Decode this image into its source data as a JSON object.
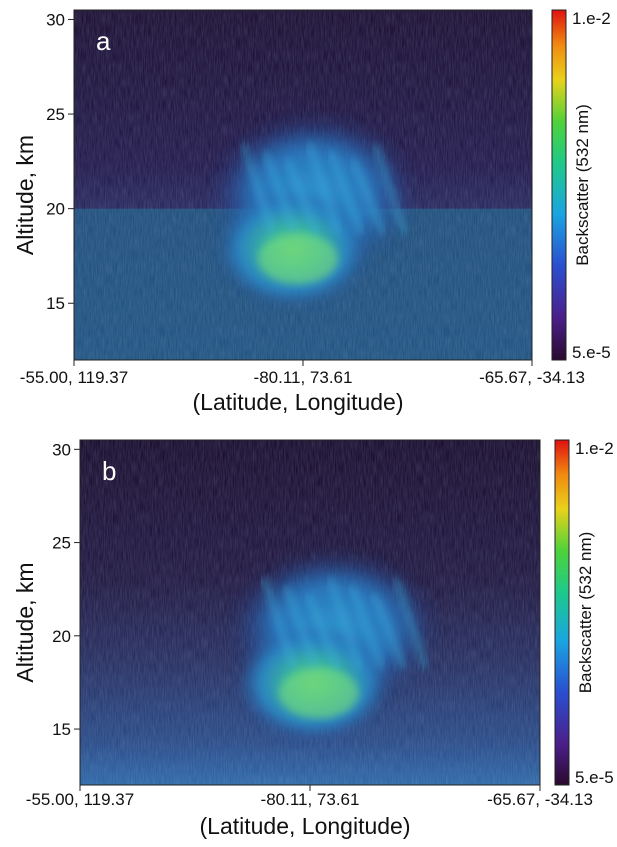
{
  "chart_data": [
    {
      "type": "heatmap",
      "panel_label": "a",
      "ylabel": "Altitude, km",
      "xlabel": "(Latitude, Longitude)",
      "yticks": [
        15,
        20,
        25,
        30
      ],
      "ylim": [
        12,
        30.5
      ],
      "xticks": [
        "-55.00, 119.37",
        "-80.11, 73.61",
        "-65.67, -34.13"
      ],
      "colorbar": {
        "label": "Backscatter (532 nm)",
        "max_label": "1.e-2",
        "min_label": "5.e-5",
        "min": 5e-05,
        "max": 0.01,
        "scale": "log",
        "colors": [
          "#2a0a2e",
          "#4b1f8a",
          "#2a4fd0",
          "#1aa6e0",
          "#1ec98a",
          "#4fd23a",
          "#e9d21a",
          "#f08a10",
          "#e01010"
        ]
      }
    },
    {
      "type": "heatmap",
      "panel_label": "b",
      "ylabel": "Altitude, km",
      "xlabel": "(Latitude, Longitude)",
      "yticks": [
        15,
        20,
        25,
        30
      ],
      "ylim": [
        12,
        30.5
      ],
      "xticks": [
        "-55.00, 119.37",
        "-80.11, 73.61",
        "-65.67, -34.13"
      ],
      "colorbar": {
        "label": "Backscatter (532 nm)",
        "max_label": "1.e-2",
        "min_label": "5.e-5",
        "min": 5e-05,
        "max": 0.01,
        "scale": "log",
        "colors": [
          "#2a0a2e",
          "#4b1f8a",
          "#2a4fd0",
          "#1aa6e0",
          "#1ec98a",
          "#4fd23a",
          "#e9d21a",
          "#f08a10",
          "#e01010"
        ]
      }
    }
  ]
}
